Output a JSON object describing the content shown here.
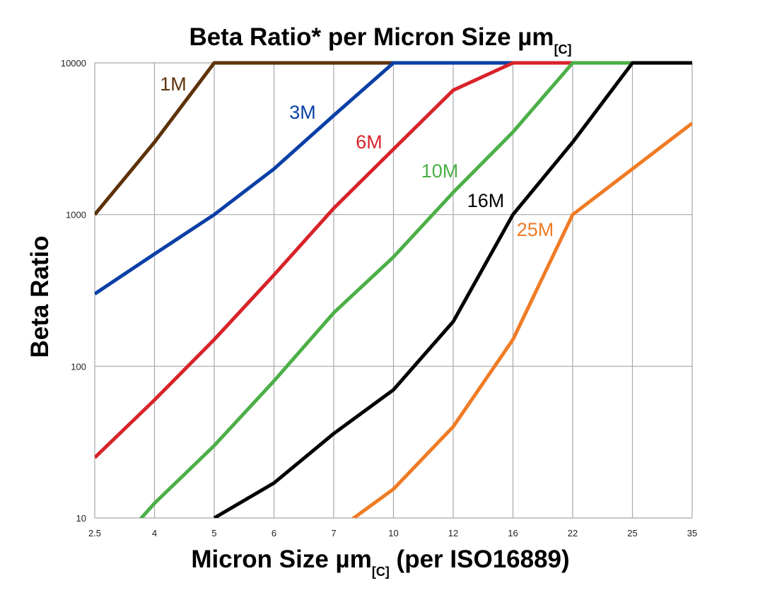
{
  "chart_data": {
    "type": "line",
    "title": "Beta Ratio* per Micron Size µm",
    "title_subscript": "[C]",
    "xlabel": "Micron Size µm",
    "xlabel_subscript": "[C]",
    "xlabel_suffix": " (per ISO16889)",
    "ylabel": "Beta Ratio",
    "yscale": "log",
    "ylim": [
      10,
      10000
    ],
    "yticks": [
      "10",
      "100",
      "1000",
      "10000"
    ],
    "categories": [
      "2.5",
      "4",
      "5",
      "6",
      "7",
      "10",
      "12",
      "16",
      "22",
      "25",
      "35"
    ],
    "grid": true,
    "legend": "inline labels",
    "series": [
      {
        "name": "1M",
        "color": "#5c3208",
        "values": [
          1000,
          3000,
          10000,
          10000,
          10000,
          10000,
          10000,
          10000,
          10000,
          10000,
          10000
        ]
      },
      {
        "name": "3M",
        "color": "#0a3fa6",
        "values": [
          300,
          550,
          1000,
          2000,
          4500,
          10000,
          10000,
          10000,
          10000,
          10000,
          10000
        ]
      },
      {
        "name": "6M",
        "color": "#d8232a",
        "values": [
          25,
          60,
          150,
          400,
          1100,
          2700,
          6600,
          10000,
          10000,
          10000,
          10000
        ]
      },
      {
        "name": "10M",
        "color": "#4caf48",
        "values": [
          4.5,
          12.5,
          30,
          80,
          225,
          525,
          1400,
          3500,
          10000,
          10000,
          10000
        ]
      },
      {
        "name": "16M",
        "color": "#000000",
        "values": [
          null,
          null,
          10,
          17,
          36,
          70,
          197,
          1000,
          3000,
          10000,
          10000
        ]
      },
      {
        "name": "25M",
        "color": "#f07b25",
        "values": [
          null,
          null,
          null,
          null,
          8,
          15.5,
          40,
          150,
          1000,
          2000,
          4000
        ]
      }
    ]
  }
}
